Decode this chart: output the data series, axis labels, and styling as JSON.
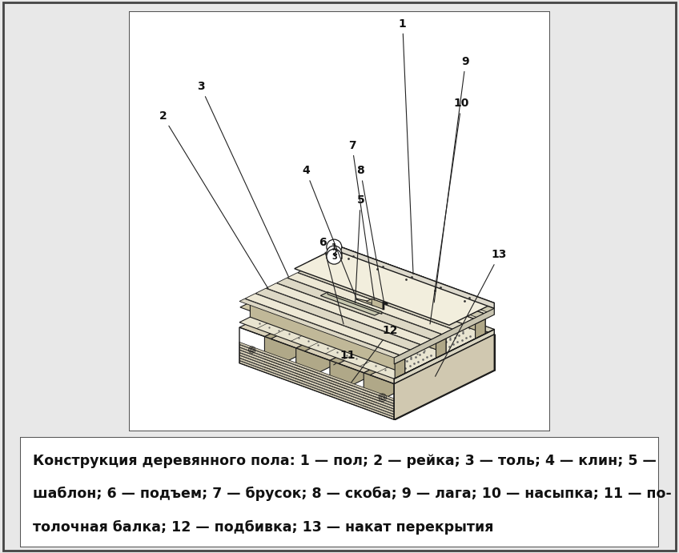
{
  "bg_color": "#ffffff",
  "outer_bg": "#e8e8e8",
  "border_color": "#555555",
  "line_color": "#1a1a1a",
  "caption_line1": "Конструкция деревянного пола: 1 — пол; 2 — рейка; 3 — толь; 4 — клин; 5 —",
  "caption_line2": "шаблон; 6 — подъем; 7 — брусок; 8 — скоба; 9 — лага; 10 — насыпка; 11 — по-",
  "caption_line3": "толочная балка; 12 — подбивка; 13 — накат перекрытия",
  "font_size_caption": 12.5
}
